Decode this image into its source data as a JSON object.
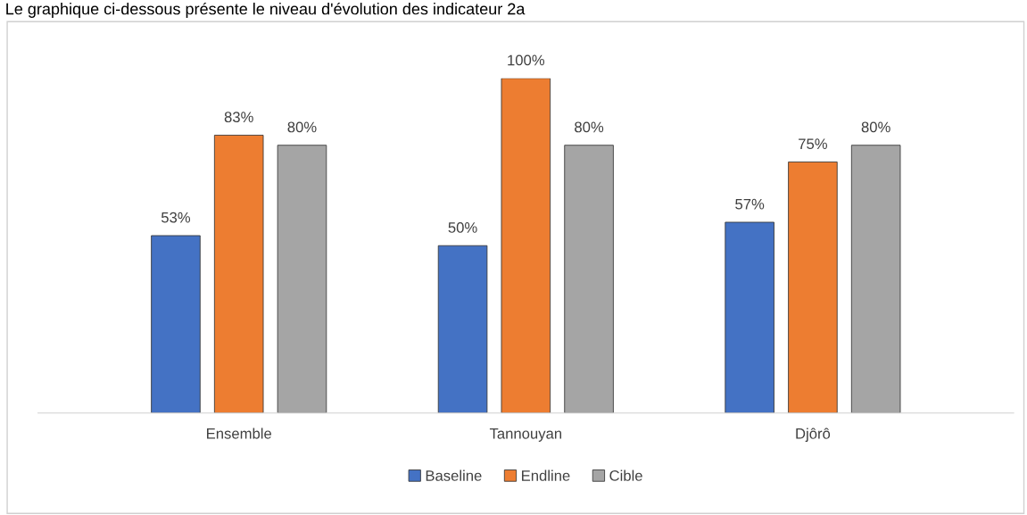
{
  "chart_data": {
    "type": "bar",
    "title": "Le graphique ci-dessous présente le niveau d'évolution des indicateur 2a",
    "categories": [
      "Ensemble",
      "Tannouyan",
      "Djôrô"
    ],
    "series": [
      {
        "name": "Baseline",
        "color": "#4472c4",
        "values": [
          53,
          50,
          57
        ],
        "value_labels": [
          "53%",
          "50%",
          "57%"
        ]
      },
      {
        "name": "Endline",
        "color": "#ed7d31",
        "values": [
          83,
          100,
          75
        ],
        "value_labels": [
          "83%",
          "100%",
          "75%"
        ]
      },
      {
        "name": "Cible",
        "color": "#a5a5a5",
        "values": [
          80,
          80,
          80
        ],
        "value_labels": [
          "80%",
          "80%",
          "80%"
        ]
      }
    ],
    "grid": false,
    "legend": "bottom",
    "tick_labels": "x"
  }
}
